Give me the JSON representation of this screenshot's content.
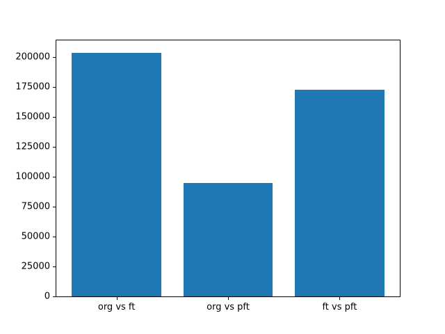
{
  "figure": {
    "background": "#ffffff",
    "spine_color": "#000000",
    "text_color": "#000000"
  },
  "chart_data": {
    "type": "bar",
    "title": "",
    "xlabel": "",
    "ylabel": "",
    "categories": [
      "org vs ft",
      "org vs pft",
      "ft vs pft"
    ],
    "values": [
      204000,
      95000,
      173000
    ],
    "bar_color": "#1f77b4",
    "bar_width_fraction": 0.8,
    "yticks": [
      0,
      25000,
      50000,
      75000,
      100000,
      125000,
      150000,
      175000,
      200000
    ],
    "ylim": [
      0,
      214200
    ],
    "grid": false,
    "legend": "none"
  }
}
